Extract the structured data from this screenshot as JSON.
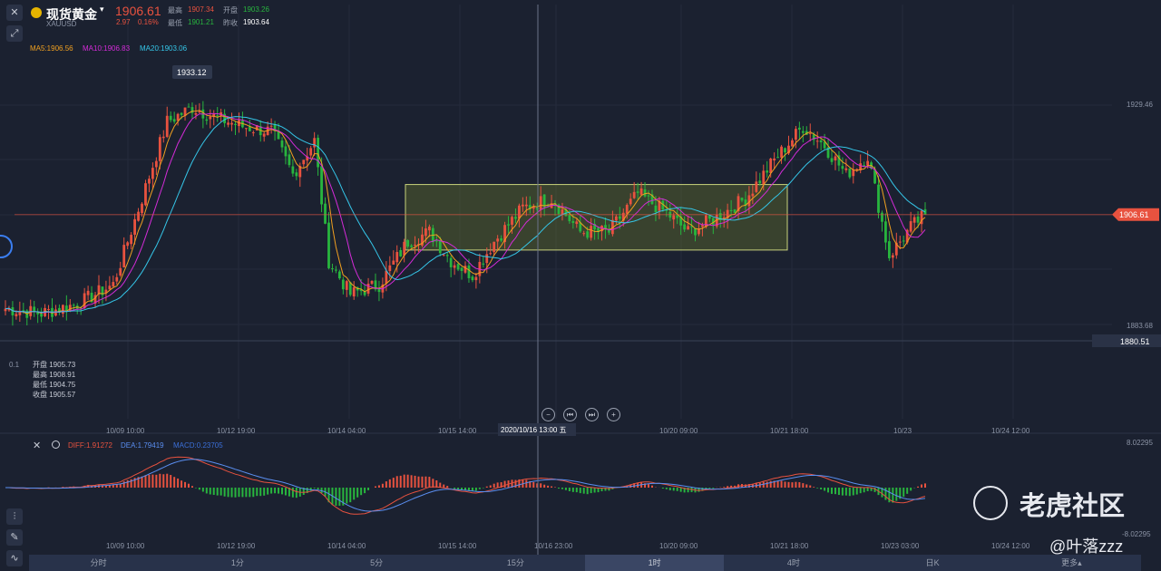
{
  "header": {
    "name": "现货黄金",
    "code": "XAUUSD",
    "price": "1906.61",
    "change": "2.97",
    "change_pct": "0.16%",
    "high_label": "最高",
    "high": "1907.34",
    "open_label": "开盘",
    "open": "1903.26",
    "low_label": "最低",
    "low": "1901.21",
    "prev_label": "昨收",
    "prev": "1903.64"
  },
  "ma": {
    "ma5": "MA5:1906.56",
    "ma10": "MA10:1906.83",
    "ma20": "MA20:1903.06"
  },
  "peak_label": "1933.12",
  "price_labels": {
    "top": "1929.46",
    "bottom": "1883.68",
    "current": "1906.61",
    "crosshair": "1880.51",
    "left_marker": "0.1"
  },
  "ohlc": {
    "open": "开盘 1905.73",
    "high": "最高 1908.91",
    "low": "最低 1904.75",
    "close": "收盘 1905.57"
  },
  "time_axis_main": [
    "10/09 10:00",
    "10/12 19:00",
    "10/14 04:00",
    "10/15 14:00",
    "13:00",
    "10/20 09:00",
    "10/21 18:00",
    "10/23",
    "10/24 12:00"
  ],
  "crosshair_time": "2020/10/16 13:00 五",
  "macd": {
    "diff": "DIFF:1.91272",
    "dea": "DEA:1.79419",
    "macd": "MACD:0.23705",
    "top": "8.02295",
    "bottom": "-8.02295"
  },
  "time_axis_macd": [
    "10/09 10:00",
    "10/12 19:00",
    "10/14 04:00",
    "10/15 14:00",
    "10/16 23:00",
    "10/20 09:00",
    "10/21 18:00",
    "10/23 03:00",
    "10/24 12:00"
  ],
  "timeframes": [
    "分时",
    "1分",
    "5分",
    "15分",
    "1时",
    "4时",
    "日K",
    "更多▴"
  ],
  "active_timeframe_index": 4,
  "watermark": {
    "brand": "老虎社区",
    "user": "@叶落zzz"
  },
  "colors": {
    "up": "#e8523f",
    "down": "#28b53e",
    "ma5": "#f0a020",
    "ma10": "#d42bd8",
    "ma20": "#35c6e8",
    "bg": "#1b2130",
    "box": "#6b7a2e"
  },
  "chart_data": {
    "type": "candlestick",
    "title": "现货黄金 XAUUSD 1时",
    "x_ticks": [
      "10/09 10:00",
      "10/12 19:00",
      "10/14 04:00",
      "10/15 14:00",
      "10/16 23:00",
      "10/20 09:00",
      "10/21 18:00",
      "10/23 03:00",
      "10/24 12:00"
    ],
    "ylim": [
      1883.68,
      1929.46
    ],
    "close_anchors": [
      {
        "i": 0,
        "v": 1887
      },
      {
        "i": 10,
        "v": 1886
      },
      {
        "i": 20,
        "v": 1888
      },
      {
        "i": 30,
        "v": 1892
      },
      {
        "i": 38,
        "v": 1910
      },
      {
        "i": 45,
        "v": 1926
      },
      {
        "i": 52,
        "v": 1929
      },
      {
        "i": 58,
        "v": 1927
      },
      {
        "i": 66,
        "v": 1925
      },
      {
        "i": 74,
        "v": 1924
      },
      {
        "i": 80,
        "v": 1915
      },
      {
        "i": 86,
        "v": 1922
      },
      {
        "i": 90,
        "v": 1897
      },
      {
        "i": 96,
        "v": 1890
      },
      {
        "i": 104,
        "v": 1892
      },
      {
        "i": 112,
        "v": 1901
      },
      {
        "i": 118,
        "v": 1903
      },
      {
        "i": 124,
        "v": 1897
      },
      {
        "i": 130,
        "v": 1894
      },
      {
        "i": 136,
        "v": 1901
      },
      {
        "i": 144,
        "v": 1908
      },
      {
        "i": 152,
        "v": 1910
      },
      {
        "i": 160,
        "v": 1903
      },
      {
        "i": 168,
        "v": 1903
      },
      {
        "i": 176,
        "v": 1911
      },
      {
        "i": 184,
        "v": 1907
      },
      {
        "i": 190,
        "v": 1903
      },
      {
        "i": 198,
        "v": 1906
      },
      {
        "i": 206,
        "v": 1910
      },
      {
        "i": 214,
        "v": 1918
      },
      {
        "i": 222,
        "v": 1925
      },
      {
        "i": 228,
        "v": 1921
      },
      {
        "i": 234,
        "v": 1915
      },
      {
        "i": 240,
        "v": 1919
      },
      {
        "i": 246,
        "v": 1898
      },
      {
        "i": 252,
        "v": 1904
      },
      {
        "i": 256,
        "v": 1906.61
      }
    ],
    "consolidation_range": [
      1903,
      1911
    ],
    "macd_series": [
      {
        "name": "DIFF",
        "last": 1.91272
      },
      {
        "name": "DEA",
        "last": 1.79419
      },
      {
        "name": "MACD",
        "last": 0.23705
      }
    ]
  }
}
